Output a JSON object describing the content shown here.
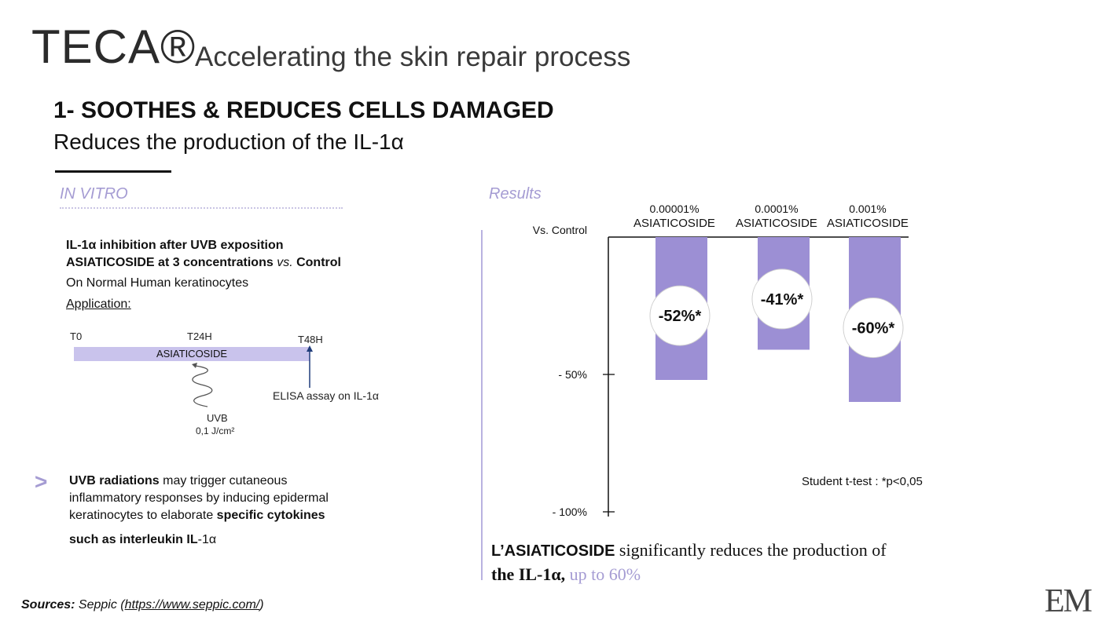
{
  "header": {
    "brand": "TECA®",
    "headline": "Accelerating the skin repair process",
    "section_title": "1- SOOTHES & REDUCES CELLS DAMAGED",
    "section_subtitle": "Reduces the production of the IL-1α"
  },
  "left": {
    "label": "IN VITRO",
    "study": {
      "line1": "IL-1α inhibition after UVB exposition",
      "line2_a": "ASIATICOSIDE at 3 concentrations ",
      "line2_b": "vs.",
      "line2_c": " Control",
      "line3": "On Normal Human keratinocytes",
      "line4": "Application:"
    },
    "timeline": {
      "t0": "T0",
      "t24": "T24H",
      "t48": "T48H",
      "bar_label": "ASIATICOSIDE",
      "uvb": "UVB",
      "uvb_dose": "0,1 J/cm²",
      "assay": "ELISA assay on  IL-1α"
    },
    "note": {
      "arrow": ">",
      "l1_bold": "UVB radiations",
      "l1_rest": " may trigger cutaneous",
      "l2": "inflammatory responses by inducing epidermal",
      "l3_a": "keratinocytes to elaborate ",
      "l3_bold": "specific cytokines",
      "l4_a": "such as interleukin IL",
      "l4_b": "-1α"
    }
  },
  "right": {
    "label": "Results"
  },
  "chart_data": {
    "type": "bar",
    "categories": [
      [
        "0.00001%",
        "ASIATICOSIDE"
      ],
      [
        "0.0001%",
        "ASIATICOSIDE"
      ],
      [
        "0.001%",
        "ASIATICOSIDE"
      ]
    ],
    "values": [
      -52,
      -41,
      -60
    ],
    "value_labels": [
      "-52%*",
      "-41%*",
      "-60%*"
    ],
    "y_tick_labels": [
      "Vs. Control",
      "- 50%",
      "- 100%"
    ],
    "y_ticks": [
      0,
      -50,
      -100
    ],
    "ylim": [
      -100,
      0
    ],
    "note": "Student t-test : *p<0,05",
    "colors": {
      "bar": "#9c8fd4",
      "circle": "#ffffff"
    }
  },
  "conclusion": {
    "a_sans": "L’ASIATICOSIDE",
    "a_rest": " significantly reduces the production of",
    "b_bold": "the IL-1α,",
    "b_accent": " up to 60%"
  },
  "footer": {
    "sources_lead": "Sources:",
    "sources_a": " Seppic (",
    "sources_link": "https://www.seppic.com/",
    "sources_b": ")",
    "logo": "EM"
  },
  "colors": {
    "accent": "#a59cd3",
    "bar_light": "#c9c3ec"
  }
}
